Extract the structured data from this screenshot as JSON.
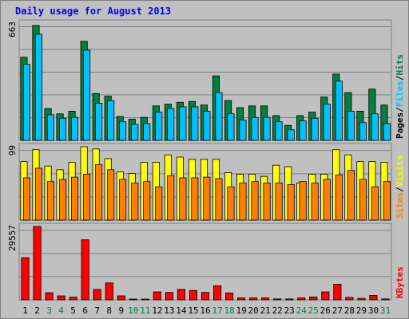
{
  "chart_data": {
    "type": "bar",
    "title": "Daily usage for August 2013",
    "categories": [
      "1",
      "2",
      "3",
      "4",
      "5",
      "6",
      "7",
      "8",
      "9",
      "10",
      "11",
      "12",
      "13",
      "14",
      "15",
      "16",
      "17",
      "18",
      "19",
      "20",
      "21",
      "22",
      "23",
      "24",
      "25",
      "26",
      "27",
      "28",
      "29",
      "30",
      "31"
    ],
    "weekend_days": [
      "3",
      "4",
      "10",
      "11",
      "17",
      "18",
      "24",
      "25",
      "31"
    ],
    "panels": [
      {
        "name": "pages-files-hits",
        "ymax_label": "663",
        "ylim": [
          0,
          663
        ],
        "legend": [
          "Pages",
          "/",
          "Files",
          "/",
          "Hits"
        ],
        "series": [
          {
            "name": "Hits",
            "color": "#008040",
            "values": [
              470,
              650,
              180,
              150,
              165,
              560,
              265,
              250,
              135,
              120,
              130,
              195,
              205,
              215,
              220,
              200,
              365,
              225,
              185,
              195,
              195,
              140,
              85,
              140,
              160,
              245,
              375,
              270,
              165,
              290,
              200
            ]
          },
          {
            "name": "Files",
            "color": "#00c0ff",
            "values": [
              430,
              600,
              145,
              125,
              130,
              510,
              210,
              225,
              105,
              90,
              95,
              160,
              180,
              190,
              190,
              165,
              270,
              150,
              115,
              130,
              130,
              105,
              60,
              110,
              125,
              205,
              335,
              165,
              100,
              150,
              95
            ]
          }
        ]
      },
      {
        "name": "visits-sites",
        "ymax_label": "99",
        "ylim": [
          0,
          99
        ],
        "legend": [
          "Sites",
          "/",
          "Visits"
        ],
        "series": [
          {
            "name": "Visits",
            "color": "#ffff00",
            "values": [
              79,
              95,
              73,
              68,
              78,
              99,
              96,
              83,
              65,
              63,
              78,
              78,
              88,
              85,
              82,
              82,
              82,
              64,
              62,
              62,
              59,
              74,
              72,
              50,
              62,
              62,
              95,
              88,
              79,
              79,
              78
            ]
          },
          {
            "name": "Sites",
            "color": "#ff8000",
            "values": [
              57,
              70,
              52,
              55,
              58,
              62,
              75,
              68,
              55,
              50,
              52,
              45,
              60,
              57,
              57,
              58,
              56,
              45,
              50,
              52,
              50,
              50,
              48,
              52,
              50,
              55,
              61,
              67,
              55,
              45,
              52
            ]
          }
        ]
      },
      {
        "name": "kbytes",
        "ymax_label": "29557",
        "ylim": [
          0,
          29557
        ],
        "legend": [
          "KBytes"
        ],
        "series": [
          {
            "name": "KBytes",
            "color": "#ff0000",
            "values": [
              17000,
              29557,
              2900,
              1600,
              1100,
              24200,
              4200,
              6800,
              1600,
              300,
              300,
              3200,
              3000,
              4200,
              3800,
              3000,
              5700,
              2800,
              800,
              800,
              800,
              400,
              400,
              800,
              1200,
              3200,
              6300,
              1000,
              600,
              1800,
              400
            ]
          }
        ]
      }
    ],
    "colors": {
      "background": "#c0c0c0",
      "plot_background": "#c0c0c0",
      "gridline": "#808080",
      "title": "#0000ff",
      "weekday_label": "#000000",
      "weekend_label": "#008040"
    }
  }
}
